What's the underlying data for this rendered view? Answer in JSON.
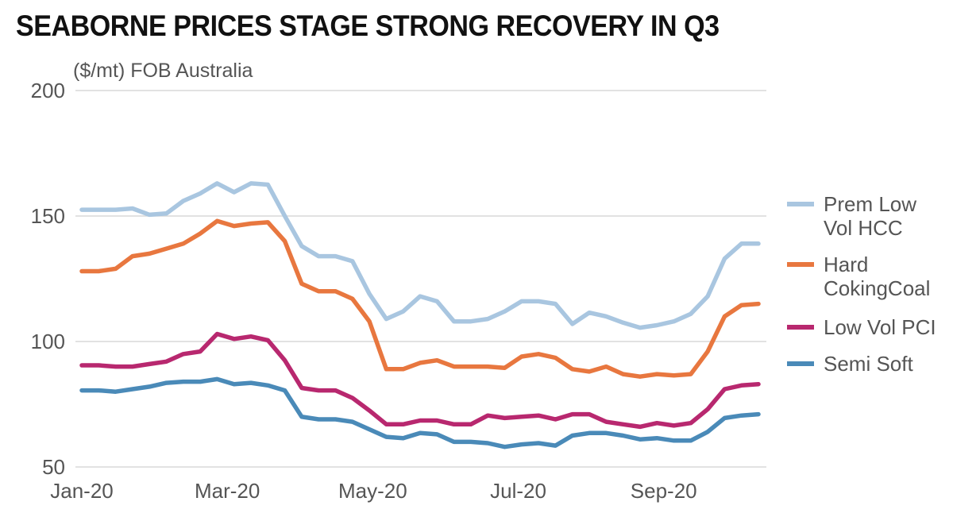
{
  "chart_data": {
    "type": "line",
    "title": "SEABORNE PRICES STAGE STRONG RECOVERY IN Q3",
    "ylabel": "($/mt) FOB Australia",
    "xlabel": "",
    "ylim": [
      50,
      200
    ],
    "yticks": [
      50,
      100,
      150,
      200
    ],
    "xlim": [
      0,
      40
    ],
    "xticks": [
      {
        "label": "Jan-20",
        "x": 0
      },
      {
        "label": "Mar-20",
        "x": 8.6
      },
      {
        "label": "May-20",
        "x": 17.2
      },
      {
        "label": "Jul-20",
        "x": 25.8
      },
      {
        "label": "Sep-20",
        "x": 34.4
      }
    ],
    "grid": "horizontal",
    "legend_position": "right",
    "x": [
      0,
      1,
      2,
      3,
      4,
      5,
      6,
      7,
      8,
      9,
      10,
      11,
      12,
      13,
      14,
      15,
      16,
      17,
      18,
      19,
      20,
      21,
      22,
      23,
      24,
      25,
      26,
      27,
      28,
      29,
      30,
      31,
      32,
      33,
      34,
      35,
      36,
      37,
      38,
      39,
      40
    ],
    "series": [
      {
        "name": "Prem Low Vol HCC",
        "legend_lines": [
          "Prem Low",
          "Vol HCC"
        ],
        "color": "#a9c6e0",
        "values": [
          152.5,
          152.5,
          152.5,
          153,
          150.5,
          151,
          156,
          159,
          163,
          159.5,
          163,
          162.5,
          150,
          138,
          134,
          134,
          132,
          119,
          109,
          112,
          118,
          116,
          108,
          108,
          109,
          112,
          116,
          116,
          115,
          107,
          111.5,
          110,
          107.5,
          105.5,
          106.5,
          108,
          111,
          118,
          133,
          139,
          139
        ]
      },
      {
        "name": "Hard CokingCoal",
        "legend_lines": [
          "Hard",
          "CokingCoal"
        ],
        "color": "#e8773f",
        "values": [
          128,
          128,
          129,
          134,
          135,
          137,
          139,
          143,
          148,
          146,
          147,
          147.5,
          140,
          123,
          120,
          120,
          117,
          108,
          89,
          89,
          91.5,
          92.5,
          90,
          90,
          90,
          89.5,
          94,
          95,
          93.5,
          89,
          88,
          90,
          87,
          86,
          87,
          86.5,
          87,
          96,
          110,
          114.5,
          115
        ]
      },
      {
        "name": "Low Vol PCI",
        "legend_lines": [
          "Low Vol PCI"
        ],
        "color": "#b8286f",
        "values": [
          90.5,
          90.5,
          90,
          90,
          91,
          92,
          95,
          96,
          103,
          101,
          102,
          100.5,
          92.5,
          81.5,
          80.5,
          80.5,
          77.5,
          72.5,
          67,
          67,
          68.5,
          68.5,
          67,
          67,
          70.5,
          69.5,
          70,
          70.5,
          69,
          71,
          71,
          68,
          67,
          66,
          67.5,
          66.5,
          67.5,
          73,
          81,
          82.5,
          83
        ]
      },
      {
        "name": "Semi Soft",
        "legend_lines": [
          "Semi Soft"
        ],
        "color": "#4a8ab8",
        "values": [
          80.5,
          80.5,
          80,
          81,
          82,
          83.5,
          84,
          84,
          85,
          83,
          83.5,
          82.5,
          80.5,
          70,
          69,
          69,
          68,
          65,
          62,
          61.5,
          63.5,
          63,
          60,
          60,
          59.5,
          58,
          59,
          59.5,
          58.5,
          62.5,
          63.5,
          63.5,
          62.5,
          61,
          61.5,
          60.5,
          60.5,
          64,
          69.5,
          70.5,
          71
        ]
      }
    ]
  }
}
